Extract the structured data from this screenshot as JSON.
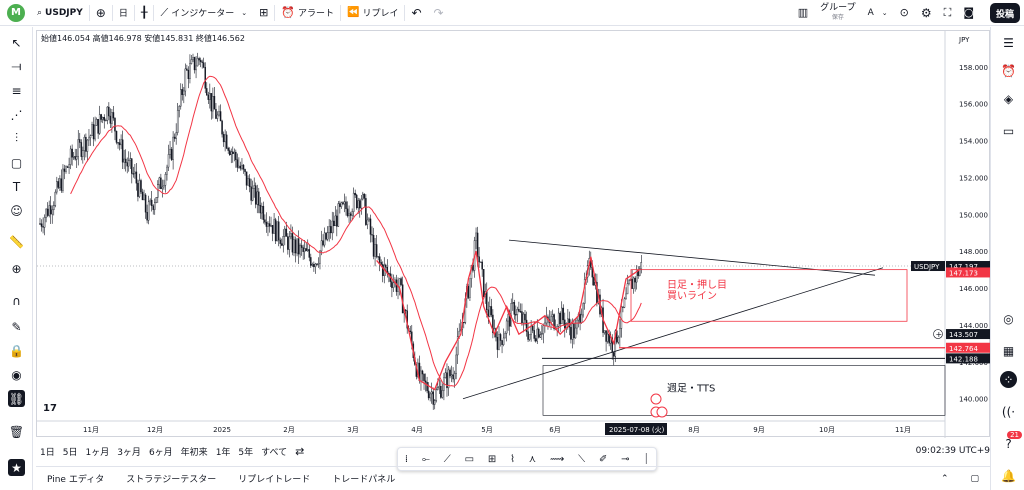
{
  "topbar": {
    "avatar_letter": "M",
    "symbol": "USDJPY",
    "interval": "日",
    "indicators": "インジケーター",
    "alert": "アラート",
    "replay": "リプレイ",
    "group": "グループ",
    "group_sub": "保存",
    "group_letter": "A",
    "post": "投稿"
  },
  "ohlc": {
    "text": "始値146.054 高値146.978 安値145.831 終値146.562"
  },
  "chart_data": {
    "type": "candlestick",
    "currency": "JPY",
    "ylim": [
      138.9,
      159.4
    ],
    "y_ticks": [
      140,
      142,
      144,
      146,
      148,
      150,
      152,
      154,
      156,
      158
    ],
    "y_tick_labels": [
      "140.000",
      "142.000",
      "144.000",
      "146.000",
      "148.000",
      "150.000",
      "152.000",
      "154.000",
      "156.000",
      "158.000"
    ],
    "x_labels": [
      "11月",
      "12月",
      "2025",
      "2月",
      "3月",
      "4月",
      "5月",
      "6月",
      "7月",
      "8月",
      "9月",
      "10月",
      "11月"
    ],
    "crosshair_date": "2025-07-08 (火)",
    "price_labels": [
      {
        "text": "USDJPY",
        "value": 147.197,
        "color": "#131722"
      },
      {
        "text": "147.197",
        "value": 147.197,
        "color": "#131722"
      },
      {
        "text": "147.173",
        "value": 147.173,
        "color": "#f23645"
      },
      {
        "text": "143.507",
        "value": 143.507,
        "color": "#131722"
      },
      {
        "text": "142.764",
        "value": 142.764,
        "color": "#f23645"
      },
      {
        "text": "142.188",
        "value": 142.188,
        "color": "#131722"
      }
    ],
    "annotations": [
      "日足・押し目\n買いライン",
      "週足・TTS"
    ],
    "ma_color": "#f23645",
    "zigzag_color": "#f23645"
  },
  "bottombar": {
    "ranges": [
      "1日",
      "5日",
      "1ヶ月",
      "3ヶ月",
      "6ヶ月",
      "年初来",
      "1年",
      "5年",
      "すべて"
    ],
    "clock": "09:02:39 UTC+9"
  },
  "panels": [
    "Pine エディタ",
    "ストラテジーテスター",
    "リプレイトレード",
    "トレードパネル"
  ],
  "right_badge": "21",
  "annot1_a": "日足・押し目",
  "annot1_b": "買いライン",
  "annot2": "週足・TTS",
  "tv_logo": "17"
}
